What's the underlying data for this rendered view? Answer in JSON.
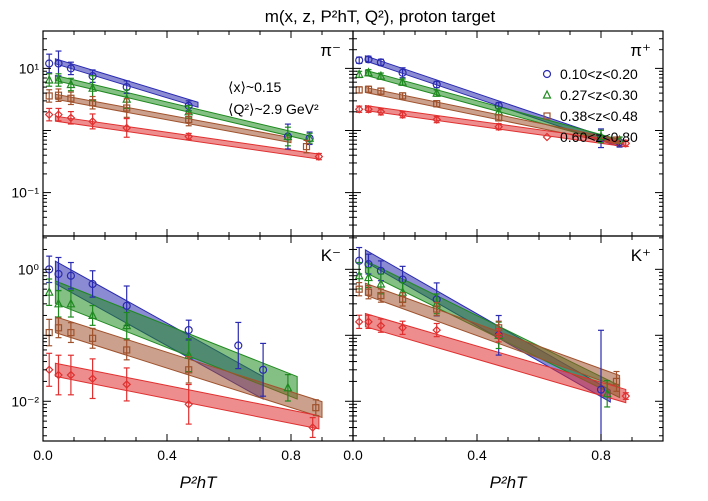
{
  "title": "m(x, z, P²hT, Q²), proton target",
  "colors": {
    "z1": "#2b2bb0",
    "z2": "#1f8a1f",
    "z3": "#a0522d",
    "z4": "#e03030"
  },
  "chart_data": [
    {
      "panel": "pi-minus",
      "label": "π⁻",
      "type": "scatter",
      "yscale": "log",
      "xlim": [
        0,
        1.0
      ],
      "ylim": [
        0.02,
        40
      ],
      "annotations": [
        "⟨x⟩~0.15",
        "⟨Q²⟩~2.9 GeV²"
      ],
      "yticks": [
        "10¹",
        "10⁻¹"
      ],
      "series": [
        {
          "x": [
            0.02,
            0.05,
            0.09,
            0.16,
            0.27,
            0.47,
            0.79,
            0.86
          ],
          "values": [
            12.0,
            12.0,
            10.0,
            7.5,
            5.0,
            2.5,
            0.8,
            0.75
          ],
          "err": [
            0.15,
            0.2,
            0.1,
            0.1,
            0.1,
            0.08,
            0.2,
            0.1
          ],
          "line": [
            [
              0.04,
              13.0
            ],
            [
              0.5,
              2.6
            ]
          ],
          "band": 0.04,
          "marker": "circle",
          "color": "z1"
        },
        {
          "x": [
            0.02,
            0.05,
            0.09,
            0.16,
            0.27,
            0.47,
            0.79,
            0.86
          ],
          "values": [
            6.5,
            6.5,
            5.5,
            4.8,
            3.2,
            2.0,
            0.8,
            0.75
          ],
          "err": [
            0.1,
            0.1,
            0.1,
            0.2,
            0.15,
            0.1,
            0.15,
            0.08
          ],
          "line": [
            [
              0.04,
              7.0
            ],
            [
              0.86,
              0.75
            ]
          ],
          "band": 0.04,
          "marker": "triangle",
          "color": "z2"
        },
        {
          "x": [
            0.02,
            0.05,
            0.09,
            0.16,
            0.27,
            0.47,
            0.85
          ],
          "values": [
            3.6,
            3.7,
            3.3,
            2.8,
            2.3,
            1.5,
            0.55
          ],
          "err": [
            0.1,
            0.1,
            0.1,
            0.1,
            0.15,
            0.1,
            0.1
          ],
          "line": [
            [
              0.04,
              3.5
            ],
            [
              0.8,
              0.7
            ]
          ],
          "band": 0.04,
          "marker": "square",
          "color": "z3"
        },
        {
          "x": [
            0.02,
            0.05,
            0.09,
            0.16,
            0.27,
            0.47,
            0.89
          ],
          "values": [
            1.8,
            1.8,
            1.6,
            1.4,
            1.1,
            0.8,
            0.38
          ],
          "err": [
            0.1,
            0.1,
            0.1,
            0.12,
            0.15,
            0.05,
            0.05
          ],
          "line": [
            [
              0.04,
              1.55
            ],
            [
              0.89,
              0.38
            ]
          ],
          "band": 0.04,
          "marker": "diamond",
          "color": "z4"
        }
      ]
    },
    {
      "panel": "pi-plus",
      "label": "π⁺",
      "type": "scatter",
      "yscale": "log",
      "xlim": [
        0,
        1.0
      ],
      "ylim": [
        0.02,
        40
      ],
      "legend": [
        "0.10<z<0.20",
        "0.27<z<0.30",
        "0.38<z<0.48",
        "0.60<z<0.80"
      ],
      "series": [
        {
          "x": [
            0.02,
            0.05,
            0.09,
            0.16,
            0.27,
            0.47,
            0.8,
            0.86
          ],
          "values": [
            13.5,
            14.0,
            12.5,
            8.5,
            5.5,
            2.5,
            0.75,
            0.65
          ],
          "err": [
            0.05,
            0.05,
            0.05,
            0.08,
            0.05,
            0.05,
            0.15,
            0.08
          ],
          "line": [
            [
              0.04,
              14.5
            ],
            [
              0.86,
              0.6
            ]
          ],
          "band": 0.04,
          "marker": "circle",
          "color": "z1"
        },
        {
          "x": [
            0.02,
            0.05,
            0.09,
            0.16,
            0.27,
            0.47,
            0.8,
            0.86
          ],
          "values": [
            8.0,
            8.5,
            7.5,
            6.0,
            4.0,
            2.0,
            0.8,
            0.7
          ],
          "err": [
            0.05,
            0.05,
            0.05,
            0.05,
            0.05,
            0.05,
            0.1,
            0.05
          ],
          "line": [
            [
              0.04,
              8.5
            ],
            [
              0.86,
              0.65
            ]
          ],
          "band": 0.04,
          "marker": "triangle",
          "color": "z2"
        },
        {
          "x": [
            0.02,
            0.05,
            0.09,
            0.16,
            0.27,
            0.47,
            0.85
          ],
          "values": [
            4.5,
            4.6,
            4.3,
            3.6,
            2.7,
            1.6,
            0.7
          ],
          "err": [
            0.05,
            0.05,
            0.05,
            0.05,
            0.05,
            0.05,
            0.05
          ],
          "line": [
            [
              0.04,
              4.5
            ],
            [
              0.86,
              0.65
            ]
          ],
          "band": 0.04,
          "marker": "square",
          "color": "z3"
        },
        {
          "x": [
            0.02,
            0.05,
            0.09,
            0.16,
            0.27,
            0.47,
            0.88
          ],
          "values": [
            2.2,
            2.2,
            2.0,
            1.8,
            1.5,
            1.15,
            0.62
          ],
          "err": [
            0.05,
            0.05,
            0.05,
            0.05,
            0.05,
            0.05,
            0.05
          ],
          "line": [
            [
              0.04,
              2.3
            ],
            [
              0.88,
              0.6
            ]
          ],
          "band": 0.04,
          "marker": "diamond",
          "color": "z4"
        }
      ]
    },
    {
      "panel": "k-minus",
      "label": "K⁻",
      "type": "scatter",
      "yscale": "log",
      "xlim": [
        0,
        1.0
      ],
      "ylim": [
        0.0025,
        3.2
      ],
      "xticks": [
        "0.0",
        "0.4",
        "0.8"
      ],
      "xlabel": "P²hT",
      "yticks": [
        "10⁰",
        "10⁻²"
      ],
      "series": [
        {
          "x": [
            0.02,
            0.05,
            0.09,
            0.16,
            0.27,
            0.47,
            0.63,
            0.71
          ],
          "values": [
            1.0,
            0.85,
            0.8,
            0.6,
            0.28,
            0.12,
            0.07,
            0.03
          ],
          "err": [
            0.2,
            0.25,
            0.2,
            0.2,
            0.3,
            0.15,
            0.35,
            0.4
          ],
          "line": [
            [
              0.04,
              0.9
            ],
            [
              0.71,
              0.016
            ]
          ],
          "band": 0.17,
          "marker": "circle",
          "color": "z1"
        },
        {
          "x": [
            0.02,
            0.05,
            0.09,
            0.16,
            0.27,
            0.47,
            0.79
          ],
          "values": [
            0.45,
            0.3,
            0.3,
            0.2,
            0.14,
            0.05,
            0.016
          ],
          "err": [
            0.2,
            0.2,
            0.2,
            0.15,
            0.2,
            0.25,
            0.2
          ],
          "line": [
            [
              0.04,
              0.45
            ],
            [
              0.82,
              0.016
            ]
          ],
          "band": 0.17,
          "marker": "triangle",
          "color": "z2"
        },
        {
          "x": [
            0.02,
            0.05,
            0.09,
            0.16,
            0.27,
            0.47,
            0.88
          ],
          "values": [
            0.11,
            0.13,
            0.11,
            0.09,
            0.06,
            0.03,
            0.008
          ],
          "err": [
            0.2,
            0.15,
            0.15,
            0.15,
            0.15,
            0.2,
            0.12
          ],
          "line": [
            [
              0.04,
              0.145
            ],
            [
              0.9,
              0.0075
            ]
          ],
          "band": 0.12,
          "marker": "square",
          "color": "z3"
        },
        {
          "x": [
            0.02,
            0.05,
            0.09,
            0.16,
            0.27,
            0.47,
            0.87
          ],
          "values": [
            0.03,
            0.025,
            0.025,
            0.022,
            0.018,
            0.009,
            0.004
          ],
          "err": [
            0.25,
            0.3,
            0.3,
            0.3,
            0.25,
            0.3,
            0.15
          ],
          "line": [
            [
              0.04,
              0.03
            ],
            [
              0.89,
              0.0048
            ]
          ],
          "band": 0.1,
          "marker": "diamond",
          "color": "z4"
        }
      ]
    },
    {
      "panel": "k-plus",
      "label": "K⁺",
      "type": "scatter",
      "yscale": "log",
      "xlim": [
        0,
        1.0
      ],
      "ylim": [
        0.0025,
        3.2
      ],
      "xticks": [
        "0.0",
        "0.4",
        "0.8"
      ],
      "xlabel": "P²hT",
      "series": [
        {
          "x": [
            0.02,
            0.05,
            0.09,
            0.16,
            0.27,
            0.47,
            0.8
          ],
          "values": [
            1.35,
            1.2,
            0.95,
            0.7,
            0.35,
            0.1,
            0.015
          ],
          "err": [
            0.2,
            0.15,
            0.15,
            0.2,
            0.25,
            0.3,
            0.9
          ],
          "line": [
            [
              0.04,
              1.6
            ],
            [
              0.83,
              0.012
            ]
          ],
          "band": 0.09,
          "marker": "circle",
          "color": "z1"
        },
        {
          "x": [
            0.02,
            0.05,
            0.09,
            0.16,
            0.27,
            0.47,
            0.82
          ],
          "values": [
            0.8,
            0.75,
            0.6,
            0.45,
            0.3,
            0.1,
            0.013
          ],
          "err": [
            0.2,
            0.15,
            0.15,
            0.15,
            0.15,
            0.2,
            0.2
          ],
          "line": [
            [
              0.04,
              1.1
            ],
            [
              0.86,
              0.014
            ]
          ],
          "band": 0.09,
          "marker": "triangle",
          "color": "z2"
        },
        {
          "x": [
            0.02,
            0.05,
            0.09,
            0.16,
            0.27,
            0.47,
            0.85
          ],
          "values": [
            0.5,
            0.45,
            0.4,
            0.35,
            0.25,
            0.13,
            0.02
          ],
          "err": [
            0.1,
            0.1,
            0.1,
            0.1,
            0.1,
            0.1,
            0.15
          ],
          "line": [
            [
              0.04,
              0.5
            ],
            [
              0.86,
              0.02
            ]
          ],
          "band": 0.09,
          "marker": "square",
          "color": "z3"
        },
        {
          "x": [
            0.02,
            0.05,
            0.09,
            0.16,
            0.27,
            0.47,
            0.88
          ],
          "values": [
            0.16,
            0.16,
            0.14,
            0.13,
            0.12,
            0.1,
            0.012
          ],
          "err": [
            0.1,
            0.1,
            0.1,
            0.1,
            0.1,
            0.1,
            0.05
          ],
          "line": [
            [
              0.04,
              0.17
            ],
            [
              0.88,
              0.012
            ]
          ],
          "band": 0.1,
          "marker": "diamond",
          "color": "z4"
        }
      ]
    }
  ]
}
